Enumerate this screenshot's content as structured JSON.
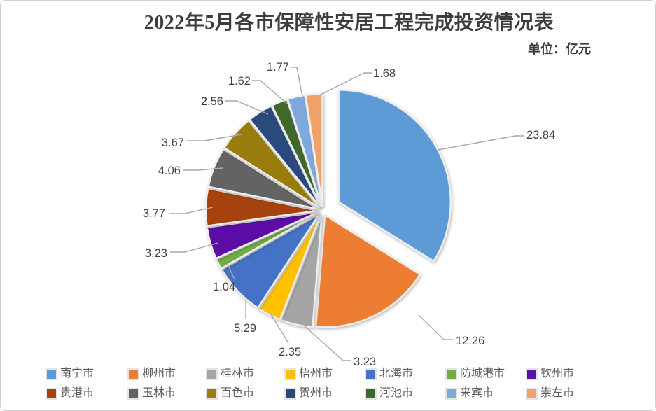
{
  "chart": {
    "title": "2022年5月各市保障性安居工程完成投资情况表",
    "unit_label": "单位：亿元",
    "title_color": "#3d3d3d",
    "value_label_color": "#404040",
    "leader_line_color": "#a9a9a9",
    "legend_text_color": "#595959",
    "canvas_border_color": "#d0d0d0"
  },
  "chart_data": {
    "type": "pie",
    "title": "2022年5月各市保障性安居工程完成投资情况表",
    "unit": "亿元",
    "categories": [
      "南宁市",
      "柳州市",
      "桂林市",
      "梧州市",
      "北海市",
      "防城港市",
      "钦州市",
      "贵港市",
      "玉林市",
      "百色市",
      "贺州市",
      "河池市",
      "来宾市",
      "崇左市"
    ],
    "values": [
      23.84,
      12.26,
      3.23,
      2.35,
      5.29,
      1.04,
      3.23,
      3.77,
      4.06,
      3.67,
      2.56,
      1.62,
      1.77,
      1.68
    ],
    "colors": [
      "#5B9BD5",
      "#ED7D31",
      "#A5A5A5",
      "#FFC000",
      "#4472C4",
      "#70AD47",
      "#5B11A7",
      "#A6430D",
      "#636363",
      "#9A7B0F",
      "#29497B",
      "#3F672B",
      "#7FA8DC",
      "#F2A268"
    ],
    "legend_position": "bottom",
    "data_label_style": "value outside slice with gray leader lines",
    "exploded_slice": "南宁市",
    "start_angle_deg": 0,
    "direction": "clockwise"
  }
}
